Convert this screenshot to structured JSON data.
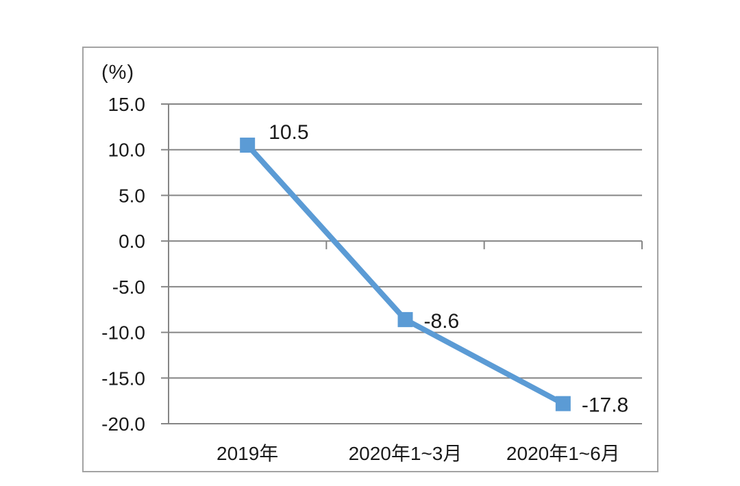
{
  "chart_data": {
    "type": "line",
    "title": "",
    "unit_label": "(%)",
    "categories": [
      "2019年",
      "2020年1~3月",
      "2020年1~6月"
    ],
    "values": [
      10.5,
      -8.6,
      -17.8
    ],
    "data_labels": [
      "10.5",
      "-8.6",
      "-17.8"
    ],
    "yticks": [
      15.0,
      10.0,
      5.0,
      0.0,
      -5.0,
      -10.0,
      -15.0,
      -20.0
    ],
    "ylim": [
      -20.0,
      15.0
    ],
    "xlabel": "",
    "ylabel": "(%)",
    "grid": true,
    "legend": "none",
    "axis_crosses_at": 0.0,
    "marker_shape": "square",
    "label_positions": [
      "above-right",
      "right",
      "right"
    ],
    "colors": {
      "line": "#5b9bd5",
      "marker": "#5b9bd5",
      "grid": "#858585",
      "axis": "#858585",
      "frame": "#a3a3a3",
      "text": "#1a1a1a",
      "background": "#ffffff"
    }
  }
}
